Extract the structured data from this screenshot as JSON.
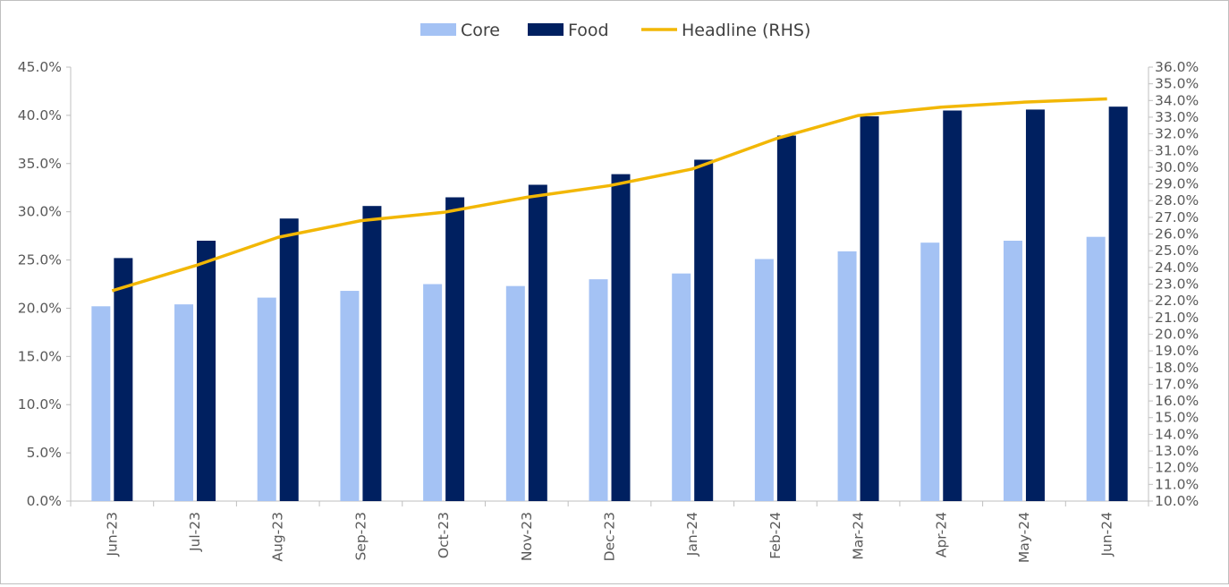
{
  "chart_data": {
    "type": "bar",
    "categories": [
      "Jun-23",
      "Jul-23",
      "Aug-23",
      "Sep-23",
      "Oct-23",
      "Nov-23",
      "Dec-23",
      "Jan-24",
      "Feb-24",
      "Mar-24",
      "Apr-24",
      "May-24",
      "Jun-24"
    ],
    "series": [
      {
        "name": "Core",
        "type": "bar",
        "axis": "left",
        "color": "#a4c2f4",
        "values": [
          20.2,
          20.4,
          21.1,
          21.8,
          22.5,
          22.3,
          23.0,
          23.6,
          25.1,
          25.9,
          26.8,
          27.0,
          27.4
        ]
      },
      {
        "name": "Food",
        "type": "bar",
        "axis": "left",
        "color": "#002060",
        "values": [
          25.2,
          27.0,
          29.3,
          30.6,
          31.5,
          32.8,
          33.9,
          35.4,
          37.9,
          39.9,
          40.5,
          40.6,
          40.9
        ]
      },
      {
        "name": "Headline (RHS)",
        "type": "line",
        "axis": "right",
        "color": "#f2b705",
        "values": [
          22.6,
          24.1,
          25.8,
          26.8,
          27.3,
          28.2,
          28.9,
          29.9,
          31.7,
          33.1,
          33.6,
          33.9,
          34.1
        ]
      }
    ],
    "ylim": [
      0,
      45
    ],
    "ylim_right": [
      10,
      36
    ],
    "yticks_left": [
      "45.0%",
      "40.0%",
      "35.0%",
      "30.0%",
      "25.0%",
      "20.0%",
      "15.0%",
      "10.0%",
      "5.0%",
      "0.0%"
    ],
    "yticks_right": [
      "36.0%",
      "35.0%",
      "34.0%",
      "33.0%",
      "32.0%",
      "31.0%",
      "30.0%",
      "29.0%",
      "28.0%",
      "27.0%",
      "26.0%",
      "25.0%",
      "24.0%",
      "23.0%",
      "22.0%",
      "21.0%",
      "20.0%",
      "19.0%",
      "18.0%",
      "17.0%",
      "16.0%",
      "15.0%",
      "14.0%",
      "13.0%",
      "12.0%",
      "11.0%",
      "10.0%"
    ],
    "legend": {
      "position": "top",
      "items": [
        "Core",
        "Food",
        "Headline (RHS)"
      ]
    },
    "grid": false,
    "title": "",
    "xlabel": "",
    "ylabel": ""
  }
}
